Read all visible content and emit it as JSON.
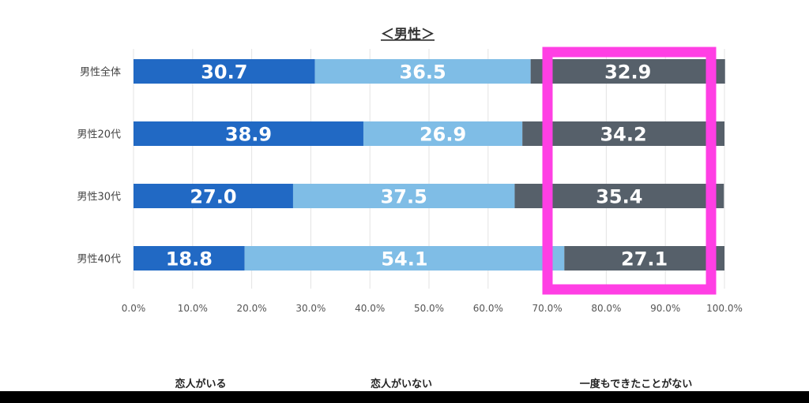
{
  "chart_data": {
    "type": "bar",
    "orientation": "horizontal",
    "stacked": true,
    "title": "＜男性＞",
    "categories": [
      "男性全体",
      "男性20代",
      "男性30代",
      "男性40代"
    ],
    "series": [
      {
        "name": "恋人がいる",
        "values": [
          30.7,
          38.9,
          27.0,
          18.8
        ],
        "labels": [
          "30.7",
          "38.9",
          "27.0",
          "18.8"
        ],
        "color": "#2169c4"
      },
      {
        "name": "恋人がいない",
        "values": [
          36.5,
          26.9,
          37.5,
          54.1
        ],
        "labels": [
          "36.5",
          "26.9",
          "37.5",
          "54.1"
        ],
        "color": "#7fbde6"
      },
      {
        "name": "一度もできたことがない",
        "values": [
          32.9,
          34.2,
          35.4,
          27.1
        ],
        "labels": [
          "32.9",
          "34.2",
          "35.4",
          "27.1"
        ],
        "color": "#56606a"
      }
    ],
    "xlim": [
      0,
      100
    ],
    "xticks": [
      "0.0%",
      "10.0%",
      "20.0%",
      "30.0%",
      "40.0%",
      "50.0%",
      "60.0%",
      "70.0%",
      "80.0%",
      "90.0%",
      "100.0%"
    ],
    "grid": true,
    "legend_position": "bottom",
    "highlight": {
      "series": "一度もできたことがない",
      "color": "#ff3fe4"
    }
  }
}
